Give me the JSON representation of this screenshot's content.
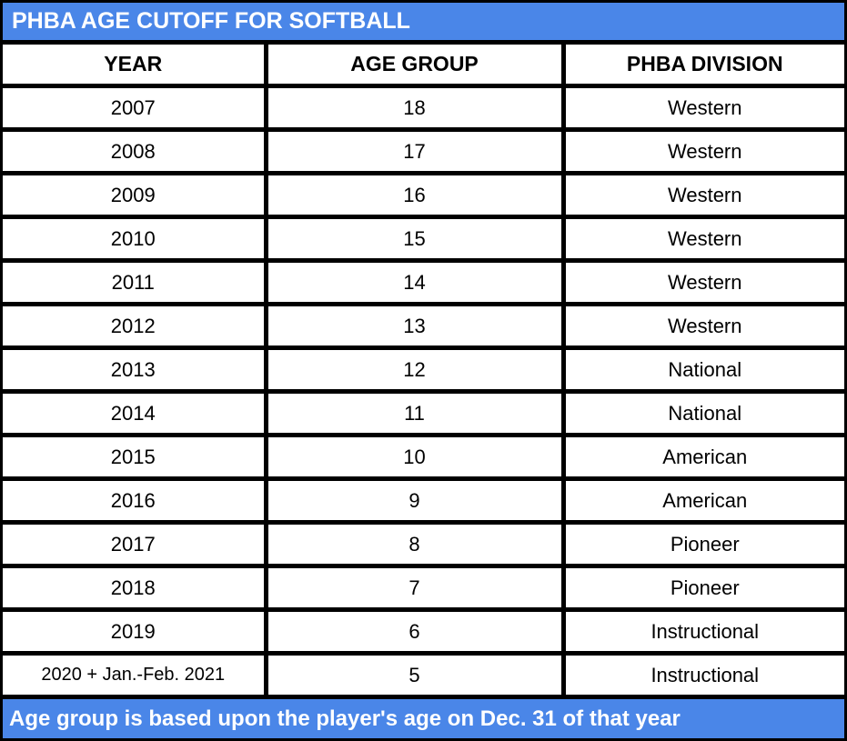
{
  "title": "PHBA AGE CUTOFF FOR SOFTBALL",
  "footer_note": "Age group is based upon the player's age on Dec. 31 of that year",
  "colors": {
    "accent_blue": "#4a86e8",
    "border_black": "#000000",
    "title_text": "#ffffff",
    "cell_text": "#000000"
  },
  "table": {
    "headers": [
      "YEAR",
      "AGE GROUP",
      "PHBA DIVISION"
    ],
    "rows": [
      [
        "2007",
        "18",
        "Western"
      ],
      [
        "2008",
        "17",
        "Western"
      ],
      [
        "2009",
        "16",
        "Western"
      ],
      [
        "2010",
        "15",
        "Western"
      ],
      [
        "2011",
        "14",
        "Western"
      ],
      [
        "2012",
        "13",
        "Western"
      ],
      [
        "2013",
        "12",
        "National"
      ],
      [
        "2014",
        "11",
        "National"
      ],
      [
        "2015",
        "10",
        "American"
      ],
      [
        "2016",
        "9",
        "American"
      ],
      [
        "2017",
        "8",
        "Pioneer"
      ],
      [
        "2018",
        "7",
        "Pioneer"
      ],
      [
        "2019",
        "6",
        "Instructional"
      ],
      [
        "2020 + Jan.-Feb. 2021",
        "5",
        "Instructional"
      ]
    ]
  }
}
